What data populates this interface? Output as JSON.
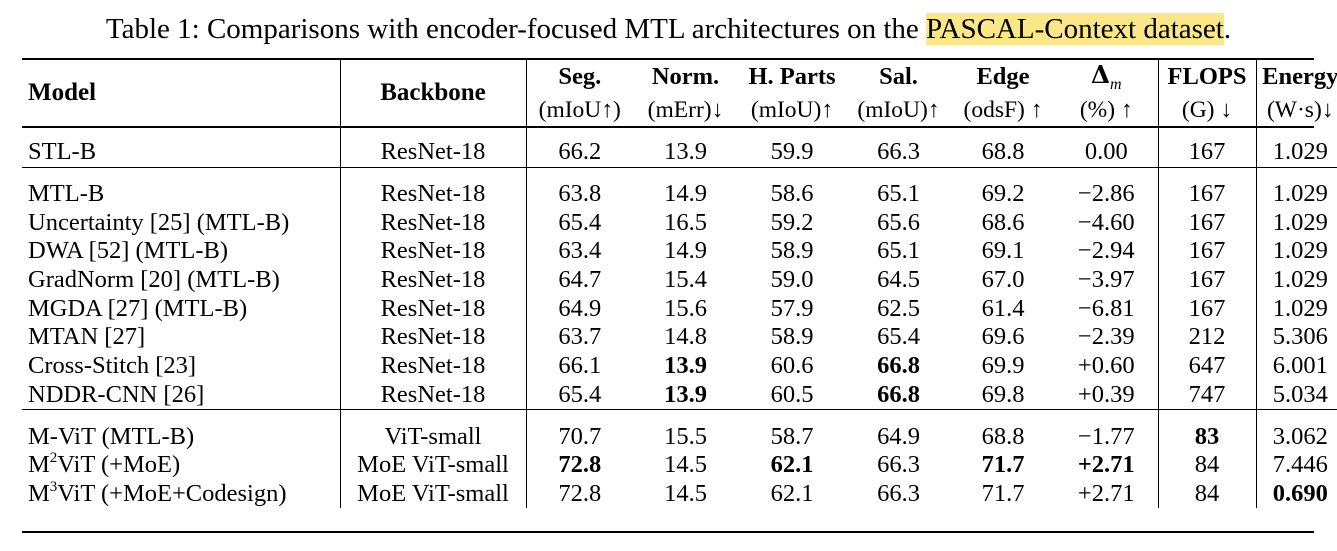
{
  "caption": {
    "before": "Table 1: Comparisons with encoder-focused MTL architectures on the ",
    "highlight": "PASCAL-Context dataset",
    "after": "."
  },
  "header": {
    "model": "Model",
    "backbone": "Backbone",
    "seg": "Seg.",
    "seg_unit": "(mIoU↑)",
    "norm": "Norm.",
    "norm_unit": "(mErr)↓",
    "hparts": "H. Parts",
    "hparts_unit": "(mIoU)↑",
    "sal": "Sal.",
    "sal_unit": "(mIoU)↑",
    "edge": "Edge",
    "edge_unit": "(odsF) ↑",
    "delta_sym": "Δ",
    "delta_sub": "m",
    "delta_unit": "(%) ↑",
    "flops": "FLOPS",
    "flops_unit": "(G) ↓",
    "energy": "Energy",
    "energy_unit": "(W·s)↓"
  },
  "groups": [
    {
      "rows": [
        {
          "model": "STL-B",
          "backbone": "ResNet-18",
          "seg": "66.2",
          "norm": "13.9",
          "hparts": "59.9",
          "sal": "66.3",
          "edge": "68.8",
          "delta": "0.00",
          "flops": "167",
          "energy": "1.029"
        }
      ]
    },
    {
      "rows": [
        {
          "model": "MTL-B",
          "backbone": "ResNet-18",
          "seg": "63.8",
          "norm": "14.9",
          "hparts": "58.6",
          "sal": "65.1",
          "edge": "69.2",
          "delta": "−2.86",
          "flops": "167",
          "energy": "1.029"
        },
        {
          "model": "Uncertainty [25] (MTL-B)",
          "backbone": "ResNet-18",
          "seg": "65.4",
          "norm": "16.5",
          "hparts": "59.2",
          "sal": "65.6",
          "edge": "68.6",
          "delta": "−4.60",
          "flops": "167",
          "energy": "1.029"
        },
        {
          "model": "DWA  [52] (MTL-B)",
          "backbone": "ResNet-18",
          "seg": "63.4",
          "norm": "14.9",
          "hparts": "58.9",
          "sal": "65.1",
          "edge": "69.1",
          "delta": "−2.94",
          "flops": "167",
          "energy": "1.029"
        },
        {
          "model": "GradNorm [20] (MTL-B)",
          "backbone": "ResNet-18",
          "seg": "64.7",
          "norm": "15.4",
          "hparts": "59.0",
          "sal": "64.5",
          "edge": "67.0",
          "delta": "−3.97",
          "flops": "167",
          "energy": "1.029"
        },
        {
          "model": "MGDA  [27] (MTL-B)",
          "backbone": "ResNet-18",
          "seg": "64.9",
          "norm": "15.6",
          "hparts": "57.9",
          "sal": "62.5",
          "edge": "61.4",
          "delta": "−6.81",
          "flops": "167",
          "energy": "1.029"
        },
        {
          "model": "MTAN [27]",
          "backbone": "ResNet-18",
          "seg": "63.7",
          "norm": "14.8",
          "hparts": "58.9",
          "sal": "65.4",
          "edge": "69.6",
          "delta": "−2.39",
          "flops": "212",
          "energy": "5.306"
        },
        {
          "model": "Cross-Stitch [23]",
          "backbone": "ResNet-18",
          "seg": "66.1",
          "norm": "13.9",
          "hparts": "60.6",
          "sal": "66.8",
          "edge": "69.9",
          "delta": "+0.60",
          "flops": "647",
          "energy": "6.001",
          "bold": [
            "norm",
            "sal"
          ]
        },
        {
          "model": "NDDR-CNN [26]",
          "backbone": "ResNet-18",
          "seg": "65.4",
          "norm": "13.9",
          "hparts": "60.5",
          "sal": "66.8",
          "edge": "69.8",
          "delta": "+0.39",
          "flops": "747",
          "energy": "5.034",
          "bold": [
            "norm",
            "sal"
          ]
        }
      ]
    },
    {
      "rows": [
        {
          "model": "M-ViT (MTL-B)",
          "backbone": "ViT-small",
          "seg": "70.7",
          "norm": "15.5",
          "hparts": "58.7",
          "sal": "64.9",
          "edge": "68.8",
          "delta": "−1.77",
          "flops": "83",
          "energy": "3.062",
          "bold": [
            "flops"
          ]
        },
        {
          "model": "M",
          "model_sup": "2",
          "model_rest": "ViT (+MoE)",
          "backbone": "MoE ViT-small",
          "seg": "72.8",
          "norm": "14.5",
          "hparts": "62.1",
          "sal": "66.3",
          "edge": "71.7",
          "delta": "+2.71",
          "flops": "84",
          "energy": "7.446",
          "bold": [
            "seg",
            "hparts",
            "edge",
            "delta"
          ]
        },
        {
          "model": "M",
          "model_sup": "3",
          "model_rest": "ViT (+MoE+Codesign)",
          "backbone": "MoE ViT-small",
          "seg": "72.8",
          "norm": "14.5",
          "hparts": "62.1",
          "sal": "66.3",
          "edge": "71.7",
          "delta": "+2.71",
          "flops": "84",
          "energy": "0.690",
          "bold": [
            "energy"
          ]
        }
      ]
    }
  ]
}
